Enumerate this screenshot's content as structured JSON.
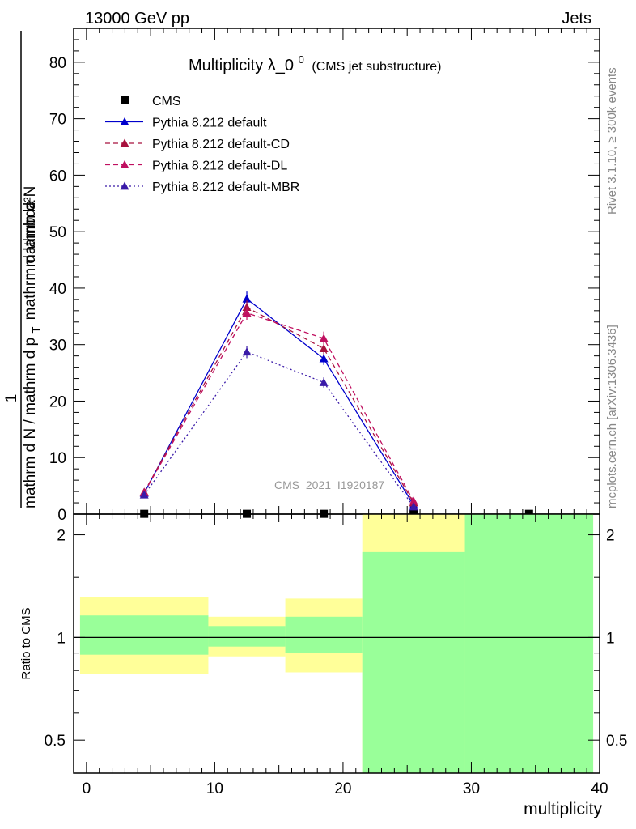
{
  "header": {
    "left": "13000 GeV pp",
    "right": "Jets"
  },
  "side_labels": {
    "rivet": "Rivet 3.1.10, ≥ 300k events",
    "mcplots": "mcplots.cern.ch [arXiv:1306.3436]"
  },
  "chart_data": [
    {
      "type": "line",
      "title": "Multiplicity λ_0",
      "title_superscript": "0",
      "subtitle": "(CMS jet substructure)",
      "watermark": "CMS_2021_I1920187",
      "ylabel_numerator": "mathrm d²N",
      "ylabel_denominator": "mathrm d N / mathrm d p",
      "ylabel_prefix": "1",
      "ylabel_num_rest": "mathrm d p",
      "ylabel_num_sub": "T",
      "ylabel_num_tail": "mathrm d lambda",
      "ylabel_den_sub": "T",
      "ylabel_den_tail": "mathrm d lambda",
      "xlim": [
        -1,
        40
      ],
      "ylim": [
        0,
        86
      ],
      "yticks": [
        "0",
        "10",
        "20",
        "30",
        "40",
        "50",
        "60",
        "70",
        "80"
      ],
      "yticks_values": [
        0,
        10,
        20,
        30,
        40,
        50,
        60,
        70,
        80
      ],
      "legend_position": "top-left",
      "series": [
        {
          "name": "CMS",
          "style": "marker-only",
          "marker": "square",
          "color": "#000000",
          "x": [
            4.5,
            12.5,
            18.5,
            25.5,
            34.5
          ],
          "y": [
            0.05,
            0.05,
            0.05,
            0.05,
            0.05
          ]
        },
        {
          "name": "Pythia 8.212 default",
          "style": "solid",
          "marker": "triangle",
          "color": "#0000cc",
          "x": [
            4.5,
            12.5,
            18.5,
            25.5
          ],
          "y": [
            3.7,
            38.1,
            27.5,
            1.6
          ],
          "err": [
            0.5,
            1.3,
            1.1,
            0.3
          ]
        },
        {
          "name": "Pythia 8.212 default-CD",
          "style": "dashed",
          "marker": "triangle",
          "color": "#a8123e",
          "x": [
            4.5,
            12.5,
            18.5,
            25.5
          ],
          "y": [
            3.9,
            36.6,
            29.3,
            2.0
          ],
          "err": [
            0.5,
            1.2,
            1.1,
            0.3
          ]
        },
        {
          "name": "Pythia 8.212 default-DL",
          "style": "dashed",
          "marker": "triangle",
          "color": "#c01060",
          "x": [
            4.5,
            12.5,
            18.5,
            25.5
          ],
          "y": [
            3.8,
            35.6,
            31.1,
            2.3
          ],
          "err": [
            0.5,
            1.2,
            1.2,
            0.3
          ]
        },
        {
          "name": "Pythia 8.212 default-MBR",
          "style": "dotted",
          "marker": "triangle",
          "color": "#3a1aa8",
          "x": [
            4.5,
            12.5,
            18.5,
            25.5
          ],
          "y": [
            3.4,
            28.7,
            23.3,
            1.3
          ],
          "err": [
            0.4,
            1.1,
            0.9,
            0.2
          ]
        }
      ]
    },
    {
      "type": "area",
      "ylabel": "Ratio to CMS",
      "xlabel": "multiplicity",
      "scale": "log",
      "xlim": [
        -1,
        40
      ],
      "ylim": [
        0.4,
        2.3
      ],
      "reference_line": 1,
      "xticks": [
        "0",
        "10",
        "20",
        "30",
        "40"
      ],
      "xticks_values": [
        0,
        10,
        20,
        30,
        40
      ],
      "yticks": [
        "0.5",
        "1",
        "2"
      ],
      "yticks_values": [
        0.5,
        1,
        2
      ],
      "bands": [
        {
          "x0": -0.5,
          "x1": 9.5,
          "yellow": [
            0.78,
            1.31
          ],
          "green": [
            0.89,
            1.16
          ]
        },
        {
          "x0": 9.5,
          "x1": 15.5,
          "yellow": [
            0.88,
            1.15
          ],
          "green": [
            0.94,
            1.08
          ]
        },
        {
          "x0": 15.5,
          "x1": 21.5,
          "yellow": [
            0.79,
            1.3
          ],
          "green": [
            0.9,
            1.15
          ]
        },
        {
          "x0": 21.5,
          "x1": 29.5,
          "yellow": [
            0.4,
            2.3
          ],
          "green": [
            0.4,
            1.78
          ]
        },
        {
          "x0": 29.5,
          "x1": 39.5,
          "yellow": [
            0.4,
            2.3
          ],
          "green": [
            0.4,
            2.3
          ]
        }
      ],
      "colors": {
        "yellow": "#ffff99",
        "green": "#99ff99"
      }
    }
  ]
}
